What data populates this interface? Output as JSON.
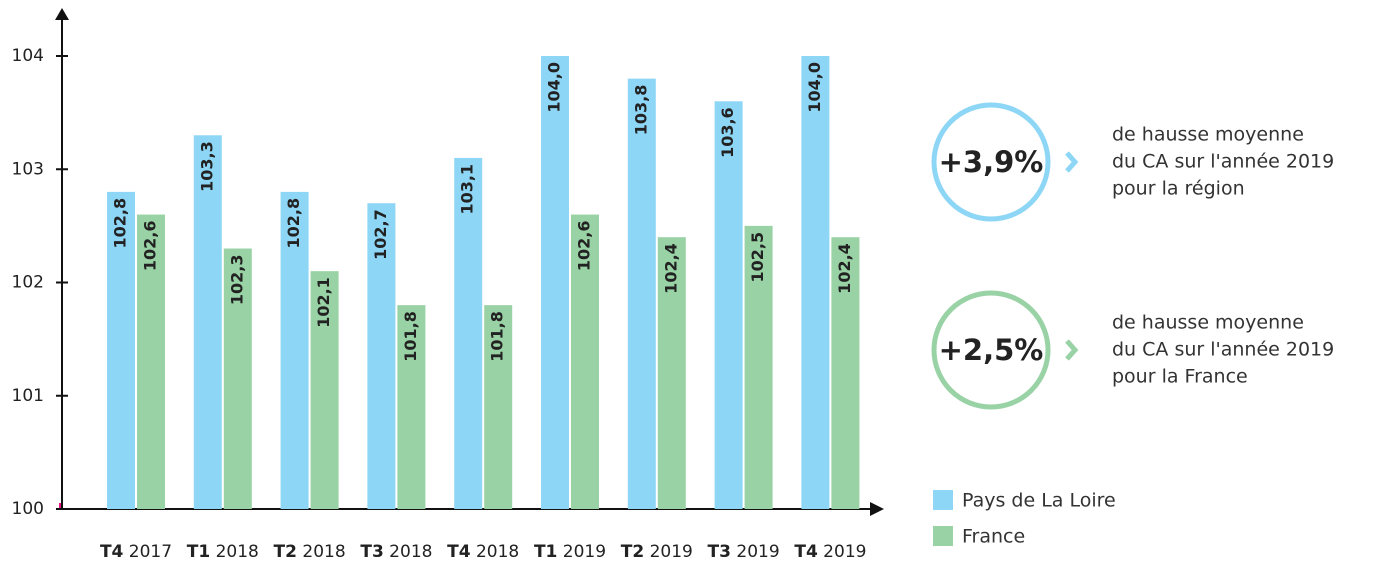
{
  "chart_data": {
    "type": "bar",
    "categories": [
      "T4 2017",
      "T1 2018",
      "T2 2018",
      "T3 2018",
      "T4 2018",
      "T1 2019",
      "T2 2019",
      "T3 2019",
      "T4 2019"
    ],
    "series": [
      {
        "name": "Pays de La Loire",
        "color": "#8dd6f6",
        "values": [
          102.8,
          103.3,
          102.8,
          102.7,
          103.1,
          104.0,
          103.8,
          103.6,
          104.0
        ],
        "value_labels": [
          "102,8",
          "103,3",
          "102,8",
          "102,7",
          "103,1",
          "104,0",
          "103,8",
          "103,6",
          "104,0"
        ]
      },
      {
        "name": "France",
        "color": "#98d2a5",
        "values": [
          102.6,
          102.3,
          102.1,
          101.8,
          101.8,
          102.6,
          102.4,
          102.5,
          102.4
        ],
        "value_labels": [
          "102,6",
          "102,3",
          "102,1",
          "101,8",
          "101,8",
          "102,6",
          "102,4",
          "102,5",
          "102,4"
        ]
      }
    ],
    "ylim": [
      100,
      104
    ],
    "yticks": [
      100,
      101,
      102,
      103,
      104
    ],
    "annotations": [
      {
        "label": "+3,9%",
        "color": "#8dd6f6",
        "lines": [
          "de hausse moyenne",
          "du CA sur l'année 2019",
          "pour la région"
        ]
      },
      {
        "label": "+2,5%",
        "color": "#98d2a5",
        "lines": [
          "de hausse moyenne",
          "du CA sur l'année 2019",
          "pour la France"
        ]
      }
    ]
  }
}
